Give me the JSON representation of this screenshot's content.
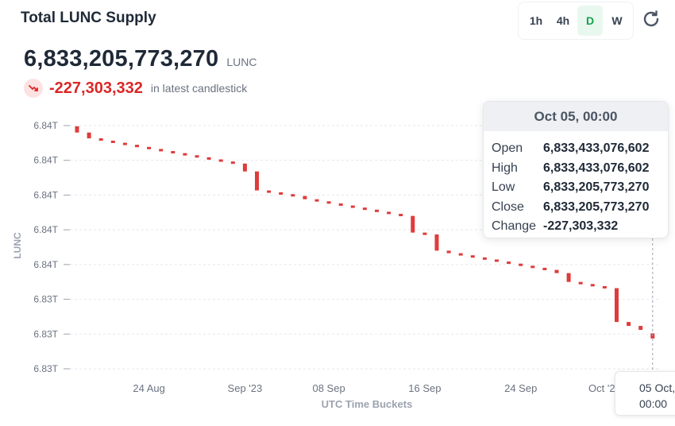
{
  "header": {
    "title": "Total LUNC Supply",
    "intervals": [
      {
        "label": "1h",
        "active": false
      },
      {
        "label": "4h",
        "active": false
      },
      {
        "label": "D",
        "active": true
      },
      {
        "label": "W",
        "active": false
      }
    ]
  },
  "summary": {
    "supply_value": "6,833,205,773,270",
    "unit": "LUNC",
    "change_value": "-227,303,332",
    "change_note": "in latest candlestick"
  },
  "tooltip": {
    "date": "Oct 05, 00:00",
    "rows": [
      {
        "label": "Open",
        "value": "6,833,433,076,602"
      },
      {
        "label": "High",
        "value": "6,833,433,076,602"
      },
      {
        "label": "Low",
        "value": "6,833,205,773,270"
      },
      {
        "label": "Close",
        "value": "6,833,205,773,270"
      },
      {
        "label": "Change",
        "value": "-227,303,332"
      }
    ]
  },
  "crosshair_label": {
    "line1": "05 Oct,",
    "line2": "00:00"
  },
  "colors": {
    "down": "#e03b3b",
    "accent_green": "#16a34a"
  },
  "chart_data": {
    "type": "candlestick",
    "title": "Total LUNC Supply",
    "xlabel": "UTC Time Buckets",
    "ylabel": "LUNC",
    "y_tick_labels": [
      "6.84T",
      "6.84T",
      "6.84T",
      "6.84T",
      "6.84T",
      "6.83T",
      "6.83T",
      "6.83T"
    ],
    "y_tick_values": [
      6.8424,
      6.8409,
      6.8394,
      6.8379,
      6.8364,
      6.8349,
      6.8334,
      6.8319
    ],
    "ylim": [
      6.8319,
      6.8424
    ],
    "y_unit": "trillion LUNC",
    "x_tick_labels": [
      "24 Aug",
      "Sep '23",
      "08 Sep",
      "16 Sep",
      "24 Sep",
      "Oct '23"
    ],
    "x_tick_dates": [
      "2023-08-24",
      "2023-09-01",
      "2023-09-08",
      "2023-09-16",
      "2023-09-24",
      "2023-10-01"
    ],
    "grid": true,
    "series": [
      {
        "candles": [
          {
            "date": "2023-08-18",
            "open": 6.84237,
            "close": 6.8421
          },
          {
            "date": "2023-08-19",
            "open": 6.8421,
            "close": 6.84185
          },
          {
            "date": "2023-08-20",
            "open": 6.84185,
            "close": 6.84175
          },
          {
            "date": "2023-08-21",
            "open": 6.84175,
            "close": 6.84166
          },
          {
            "date": "2023-08-22",
            "open": 6.84166,
            "close": 6.84157
          },
          {
            "date": "2023-08-23",
            "open": 6.84157,
            "close": 6.84148
          },
          {
            "date": "2023-08-24",
            "open": 6.84148,
            "close": 6.84139
          },
          {
            "date": "2023-08-25",
            "open": 6.84139,
            "close": 6.8413
          },
          {
            "date": "2023-08-26",
            "open": 6.8413,
            "close": 6.84121
          },
          {
            "date": "2023-08-27",
            "open": 6.84121,
            "close": 6.84112
          },
          {
            "date": "2023-08-28",
            "open": 6.84112,
            "close": 6.84103
          },
          {
            "date": "2023-08-29",
            "open": 6.84103,
            "close": 6.84094
          },
          {
            "date": "2023-08-30",
            "open": 6.84094,
            "close": 6.84085
          },
          {
            "date": "2023-08-31",
            "open": 6.84085,
            "close": 6.84076
          },
          {
            "date": "2023-09-01",
            "open": 6.84076,
            "close": 6.84042
          },
          {
            "date": "2023-09-02",
            "open": 6.84042,
            "close": 6.8396
          },
          {
            "date": "2023-09-03",
            "open": 6.8396,
            "close": 6.83952
          },
          {
            "date": "2023-09-04",
            "open": 6.83952,
            "close": 6.83944
          },
          {
            "date": "2023-09-05",
            "open": 6.83944,
            "close": 6.83936
          },
          {
            "date": "2023-09-06",
            "open": 6.83936,
            "close": 6.83922
          },
          {
            "date": "2023-09-07",
            "open": 6.83922,
            "close": 6.83913
          },
          {
            "date": "2023-09-08",
            "open": 6.83913,
            "close": 6.83904
          },
          {
            "date": "2023-09-09",
            "open": 6.83904,
            "close": 6.83895
          },
          {
            "date": "2023-09-10",
            "open": 6.83895,
            "close": 6.83886
          },
          {
            "date": "2023-09-11",
            "open": 6.83886,
            "close": 6.83877
          },
          {
            "date": "2023-09-12",
            "open": 6.83877,
            "close": 6.83868
          },
          {
            "date": "2023-09-13",
            "open": 6.83868,
            "close": 6.83859
          },
          {
            "date": "2023-09-14",
            "open": 6.83859,
            "close": 6.8385
          },
          {
            "date": "2023-09-15",
            "open": 6.8385,
            "close": 6.83778
          },
          {
            "date": "2023-09-16",
            "open": 6.83778,
            "close": 6.8377
          },
          {
            "date": "2023-09-17",
            "open": 6.8377,
            "close": 6.837
          },
          {
            "date": "2023-09-18",
            "open": 6.837,
            "close": 6.83689
          },
          {
            "date": "2023-09-19",
            "open": 6.83689,
            "close": 6.8368
          },
          {
            "date": "2023-09-20",
            "open": 6.8368,
            "close": 6.83671
          },
          {
            "date": "2023-09-21",
            "open": 6.83671,
            "close": 6.83662
          },
          {
            "date": "2023-09-22",
            "open": 6.83662,
            "close": 6.83653
          },
          {
            "date": "2023-09-23",
            "open": 6.83653,
            "close": 6.83644
          },
          {
            "date": "2023-09-24",
            "open": 6.83644,
            "close": 6.83635
          },
          {
            "date": "2023-09-25",
            "open": 6.83635,
            "close": 6.83626
          },
          {
            "date": "2023-09-26",
            "open": 6.83626,
            "close": 6.83617
          },
          {
            "date": "2023-09-27",
            "open": 6.83617,
            "close": 6.83603
          },
          {
            "date": "2023-09-28",
            "open": 6.83603,
            "close": 6.83565
          },
          {
            "date": "2023-09-29",
            "open": 6.83565,
            "close": 6.83556
          },
          {
            "date": "2023-09-30",
            "open": 6.83556,
            "close": 6.83547
          },
          {
            "date": "2023-10-01",
            "open": 6.83547,
            "close": 6.83538
          },
          {
            "date": "2023-10-02",
            "open": 6.83538,
            "close": 6.83392
          },
          {
            "date": "2023-10-03",
            "open": 6.83392,
            "close": 6.83375
          },
          {
            "date": "2023-10-04",
            "open": 6.83375,
            "close": 6.83358
          },
          {
            "date": "2023-10-05",
            "open": 6.83343,
            "close": 6.83321
          }
        ]
      }
    ]
  }
}
